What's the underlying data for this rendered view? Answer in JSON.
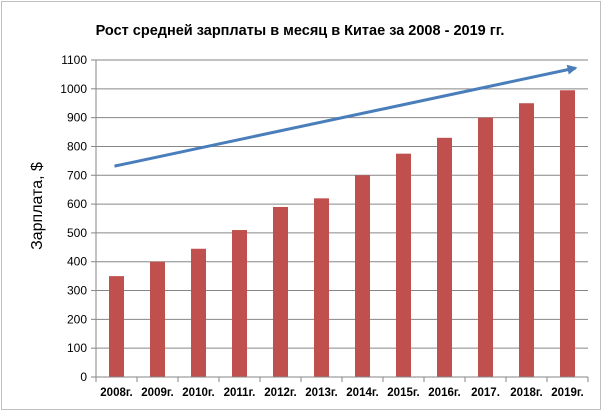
{
  "chart_data": {
    "type": "bar",
    "title": "Рост средней зарплаты в месяц в Китае за 2008 - 2019 гг.",
    "xlabel": "",
    "ylabel": "Зарплата, $",
    "categories": [
      "2008г.",
      "2009г.",
      "2010г.",
      "2011г.",
      "2012г.",
      "2013г.",
      "2014г.",
      "2015г.",
      "2016г.",
      "2017.",
      "2018г.",
      "2019г."
    ],
    "values": [
      350,
      400,
      445,
      510,
      590,
      620,
      700,
      775,
      830,
      900,
      950,
      995
    ],
    "ylim": [
      0,
      1100
    ],
    "yticks": [
      0,
      100,
      200,
      300,
      400,
      500,
      600,
      700,
      800,
      900,
      1000,
      1100
    ],
    "grid": true,
    "legend": "none",
    "bar_color": "#c0504d",
    "grid_color": "#868686",
    "annotation": {
      "type": "trend-arrow",
      "color": "#4a7ebb"
    }
  }
}
